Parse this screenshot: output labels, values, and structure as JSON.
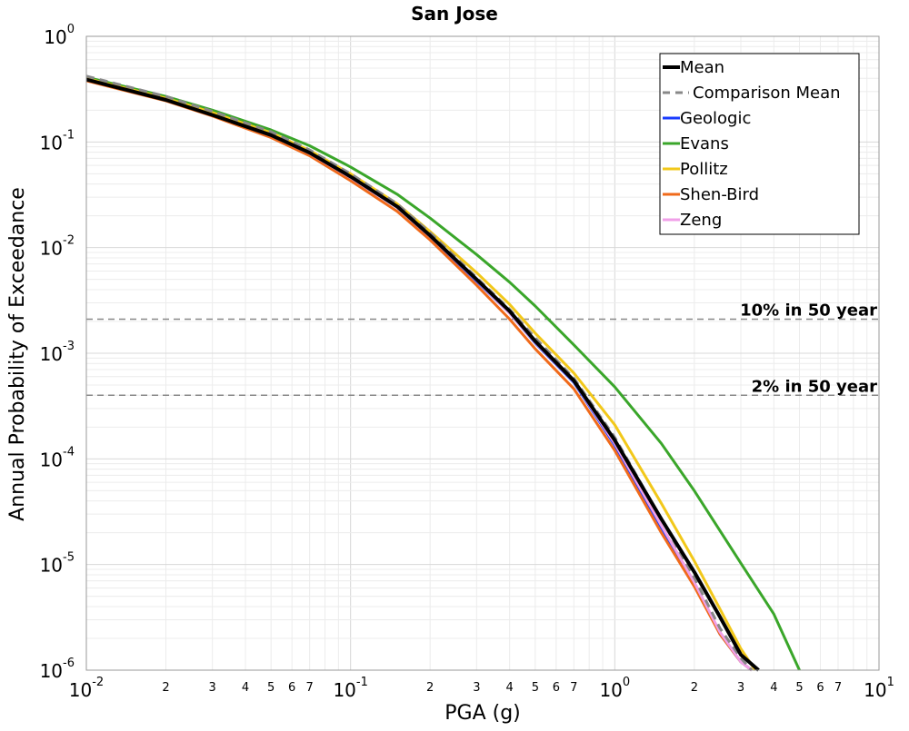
{
  "chart_data": {
    "type": "line",
    "title": "San Jose",
    "xlabel": "PGA (g)",
    "ylabel": "Annual Probability of Exceedance",
    "x_scale": "log",
    "y_scale": "log",
    "xlim": [
      0.01,
      10
    ],
    "ylim": [
      1e-06,
      1
    ],
    "grid": true,
    "legend_position": "top-right",
    "x_major_ticks": [
      {
        "base": "10",
        "exp": "-2",
        "value": 0.01
      },
      {
        "base": "10",
        "exp": "-1",
        "value": 0.1
      },
      {
        "base": "10",
        "exp": "0",
        "value": 1
      },
      {
        "base": "10",
        "exp": "1",
        "value": 10
      }
    ],
    "x_minor_ticks": [
      {
        "label": "2",
        "value": 0.02
      },
      {
        "label": "3",
        "value": 0.03
      },
      {
        "label": "4",
        "value": 0.04
      },
      {
        "label": "5",
        "value": 0.05
      },
      {
        "label": "6",
        "value": 0.06
      },
      {
        "label": "7",
        "value": 0.07
      },
      {
        "label": "2",
        "value": 0.2
      },
      {
        "label": "3",
        "value": 0.3
      },
      {
        "label": "4",
        "value": 0.4
      },
      {
        "label": "5",
        "value": 0.5
      },
      {
        "label": "6",
        "value": 0.6
      },
      {
        "label": "7",
        "value": 0.7
      },
      {
        "label": "2",
        "value": 2
      },
      {
        "label": "3",
        "value": 3
      },
      {
        "label": "4",
        "value": 4
      },
      {
        "label": "5",
        "value": 5
      },
      {
        "label": "6",
        "value": 6
      },
      {
        "label": "7",
        "value": 7
      }
    ],
    "y_major_ticks": [
      {
        "base": "10",
        "exp": "0",
        "value": 1
      },
      {
        "base": "10",
        "exp": "-1",
        "value": 0.1
      },
      {
        "base": "10",
        "exp": "-2",
        "value": 0.01
      },
      {
        "base": "10",
        "exp": "-3",
        "value": 0.001
      },
      {
        "base": "10",
        "exp": "-4",
        "value": 0.0001
      },
      {
        "base": "10",
        "exp": "-5",
        "value": 1e-05
      },
      {
        "base": "10",
        "exp": "-6",
        "value": 1e-06
      }
    ],
    "reference_lines": [
      {
        "label": "10% in 50 year",
        "y": 0.0021,
        "color": "#888888"
      },
      {
        "label": "2% in 50 year",
        "y": 0.0004,
        "color": "#888888"
      }
    ],
    "series": [
      {
        "name": "Geologic",
        "color": "#1a3cff",
        "dash": false,
        "x": [
          0.01,
          0.02,
          0.03,
          0.05,
          0.07,
          0.1,
          0.15,
          0.2,
          0.3,
          0.4,
          0.5,
          0.7,
          1.0,
          1.5,
          2.0,
          2.5,
          3.0,
          3.3
        ],
        "y": [
          0.39,
          0.25,
          0.18,
          0.115,
          0.078,
          0.046,
          0.024,
          0.0127,
          0.0048,
          0.0024,
          0.00125,
          0.00053,
          0.000135,
          2.25e-05,
          6.5e-06,
          2.2e-06,
          1.2e-06,
          1e-06
        ]
      },
      {
        "name": "Evans",
        "color": "#3aa62a",
        "dash": false,
        "x": [
          0.01,
          0.02,
          0.03,
          0.05,
          0.07,
          0.1,
          0.15,
          0.2,
          0.3,
          0.4,
          0.5,
          0.7,
          1.0,
          1.5,
          2.0,
          3.0,
          4.0,
          5.0
        ],
        "y": [
          0.41,
          0.27,
          0.2,
          0.13,
          0.092,
          0.058,
          0.032,
          0.019,
          0.0086,
          0.0047,
          0.0028,
          0.0012,
          0.00048,
          0.00014,
          5e-05,
          1.03e-05,
          3.4e-06,
          1e-06
        ]
      },
      {
        "name": "Pollitz",
        "color": "#f2c81a",
        "dash": false,
        "x": [
          0.01,
          0.02,
          0.03,
          0.05,
          0.07,
          0.1,
          0.15,
          0.2,
          0.3,
          0.4,
          0.5,
          0.7,
          1.0,
          1.5,
          2.0,
          2.5,
          3.0,
          3.4
        ],
        "y": [
          0.4,
          0.26,
          0.19,
          0.122,
          0.083,
          0.05,
          0.026,
          0.0142,
          0.0058,
          0.0029,
          0.00155,
          0.00065,
          0.00021,
          3.8e-05,
          1.08e-05,
          3.8e-06,
          1.6e-06,
          1e-06
        ]
      },
      {
        "name": "Shen-Bird",
        "color": "#f06a1a",
        "dash": false,
        "x": [
          0.01,
          0.02,
          0.03,
          0.05,
          0.07,
          0.1,
          0.15,
          0.2,
          0.3,
          0.4,
          0.5,
          0.7,
          1.0,
          1.5,
          2.0,
          2.5,
          3.0,
          3.3
        ],
        "y": [
          0.38,
          0.245,
          0.176,
          0.11,
          0.074,
          0.043,
          0.022,
          0.0118,
          0.0044,
          0.0021,
          0.0011,
          0.00046,
          0.00012,
          2e-05,
          6.2e-06,
          2.2e-06,
          1.2e-06,
          1e-06
        ]
      },
      {
        "name": "Zeng",
        "color": "#f0a0e8",
        "dash": false,
        "x": [
          0.01,
          0.02,
          0.03,
          0.05,
          0.07,
          0.1,
          0.15,
          0.2,
          0.3,
          0.4,
          0.5,
          0.7,
          1.0,
          1.5,
          2.0,
          2.5,
          3.0,
          3.3
        ],
        "y": [
          0.39,
          0.25,
          0.18,
          0.115,
          0.078,
          0.046,
          0.024,
          0.0128,
          0.0049,
          0.0024,
          0.00127,
          0.00054,
          0.00014,
          2.35e-05,
          6.8e-06,
          2.3e-06,
          1.2e-06,
          1e-06
        ]
      },
      {
        "name": "Comparison Mean",
        "color": "#888888",
        "dash": true,
        "x": [
          0.01,
          0.02,
          0.03,
          0.05,
          0.07,
          0.1,
          0.15,
          0.2,
          0.3,
          0.4,
          0.5,
          0.7,
          1.0,
          1.5,
          2.0,
          2.5,
          3.0,
          3.3
        ],
        "y": [
          0.42,
          0.27,
          0.195,
          0.125,
          0.084,
          0.05,
          0.026,
          0.0138,
          0.0052,
          0.0026,
          0.0014,
          0.00058,
          0.00016,
          2.7e-05,
          7.5e-06,
          2.5e-06,
          1.3e-06,
          1e-06
        ]
      },
      {
        "name": "Mean",
        "color": "#000000",
        "dash": false,
        "x": [
          0.01,
          0.02,
          0.03,
          0.05,
          0.07,
          0.1,
          0.15,
          0.2,
          0.3,
          0.4,
          0.5,
          0.7,
          1.0,
          1.5,
          2.0,
          2.5,
          3.0,
          3.5
        ],
        "y": [
          0.39,
          0.25,
          0.18,
          0.116,
          0.079,
          0.047,
          0.0245,
          0.013,
          0.005,
          0.0025,
          0.0013,
          0.00055,
          0.00015,
          2.7e-05,
          8.5e-06,
          3.2e-06,
          1.4e-06,
          1e-06
        ]
      }
    ],
    "legend": [
      {
        "name": "Mean",
        "color": "#000000",
        "dash": false,
        "bold": true
      },
      {
        "name": "Comparison Mean",
        "color": "#888888",
        "dash": true,
        "bold": false
      },
      {
        "name": "Geologic",
        "color": "#1a3cff",
        "dash": false,
        "bold": false
      },
      {
        "name": "Evans",
        "color": "#3aa62a",
        "dash": false,
        "bold": false
      },
      {
        "name": "Pollitz",
        "color": "#f2c81a",
        "dash": false,
        "bold": false
      },
      {
        "name": "Shen-Bird",
        "color": "#f06a1a",
        "dash": false,
        "bold": false
      },
      {
        "name": "Zeng",
        "color": "#f0a0e8",
        "dash": false,
        "bold": false
      }
    ]
  }
}
